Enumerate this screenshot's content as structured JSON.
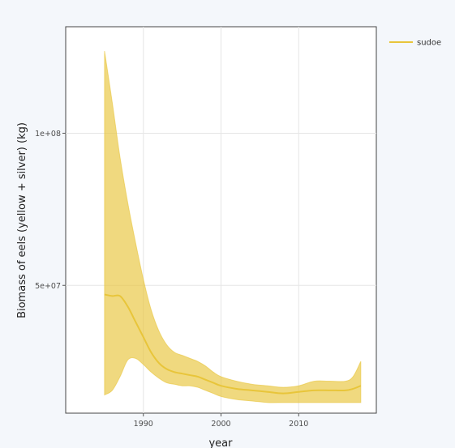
{
  "chart_data": {
    "type": "line",
    "xlabel": "year",
    "ylabel": "Biomass of eels (yellow + silver) (kg)",
    "xlim": [
      1980,
      2020
    ],
    "ylim": [
      8000000,
      135000000
    ],
    "x_ticks": [
      1990,
      2000,
      2010
    ],
    "y_ticks": [
      {
        "value": 50000000,
        "label": "5e+07"
      },
      {
        "value": 100000000,
        "label": "1e+08"
      }
    ],
    "grid": true,
    "legend": {
      "position": "top-right"
    },
    "series": [
      {
        "name": "sudoe",
        "color": "#e8c53a",
        "x": [
          1985,
          1986,
          1987,
          1988,
          1989,
          1990,
          1991,
          1992,
          1993,
          1994,
          1995,
          1996,
          1997,
          1998,
          1999,
          2000,
          2002,
          2004,
          2006,
          2008,
          2010,
          2012,
          2014,
          2016,
          2017,
          2018
        ],
        "y": [
          47000000,
          46500000,
          46500000,
          43000000,
          38000000,
          33000000,
          28000000,
          24500000,
          22500000,
          21500000,
          21000000,
          20500000,
          20000000,
          19000000,
          18000000,
          17000000,
          16000000,
          15500000,
          15000000,
          14500000,
          15000000,
          15500000,
          15500000,
          15500000,
          16000000,
          17000000
        ],
        "lower": [
          14000000,
          15500000,
          20000000,
          25500000,
          26000000,
          24000000,
          21500000,
          19500000,
          18000000,
          17500000,
          17000000,
          17000000,
          16500000,
          15500000,
          14500000,
          13500000,
          12500000,
          12000000,
          11500000,
          11500000,
          11500000,
          11500000,
          11500000,
          11500000,
          11500000,
          11500000
        ],
        "upper": [
          127000000,
          110000000,
          92000000,
          77000000,
          64000000,
          52000000,
          42000000,
          35000000,
          30500000,
          28000000,
          27000000,
          26000000,
          25000000,
          23500000,
          21500000,
          20000000,
          18500000,
          17500000,
          17000000,
          16500000,
          17000000,
          18500000,
          18500000,
          18500000,
          20000000,
          25000000
        ]
      }
    ]
  }
}
